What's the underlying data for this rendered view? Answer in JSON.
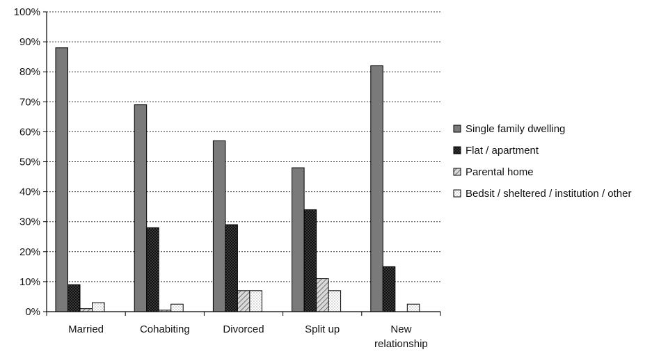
{
  "chart_data": {
    "type": "bar",
    "title": "",
    "xlabel": "",
    "ylabel": "",
    "ylim": [
      0,
      100
    ],
    "yticks": [
      "0%",
      "10%",
      "20%",
      "30%",
      "40%",
      "50%",
      "60%",
      "70%",
      "80%",
      "90%",
      "100%"
    ],
    "grid": true,
    "legend_position": "right",
    "categories": [
      [
        "Married"
      ],
      [
        "Cohabiting"
      ],
      [
        "Divorced"
      ],
      [
        "Split up"
      ],
      [
        "New",
        "relationship"
      ]
    ],
    "series": [
      {
        "name": "Single family dwelling",
        "values": [
          88,
          69,
          57,
          48,
          82
        ],
        "color": "#7a7a7a",
        "pattern": "solid"
      },
      {
        "name": "Flat / apartment",
        "values": [
          9,
          28,
          29,
          34,
          15
        ],
        "color": "#111111",
        "pattern": "dots-dark"
      },
      {
        "name": "Parental home",
        "values": [
          1,
          0.5,
          7,
          11,
          0
        ],
        "color": "#bdbdbd",
        "pattern": "hatch"
      },
      {
        "name": "Bedsit / sheltered / institution / other",
        "values": [
          3,
          2.5,
          7,
          7,
          2.5
        ],
        "color": "#ffffff",
        "pattern": "dots-light"
      }
    ]
  }
}
